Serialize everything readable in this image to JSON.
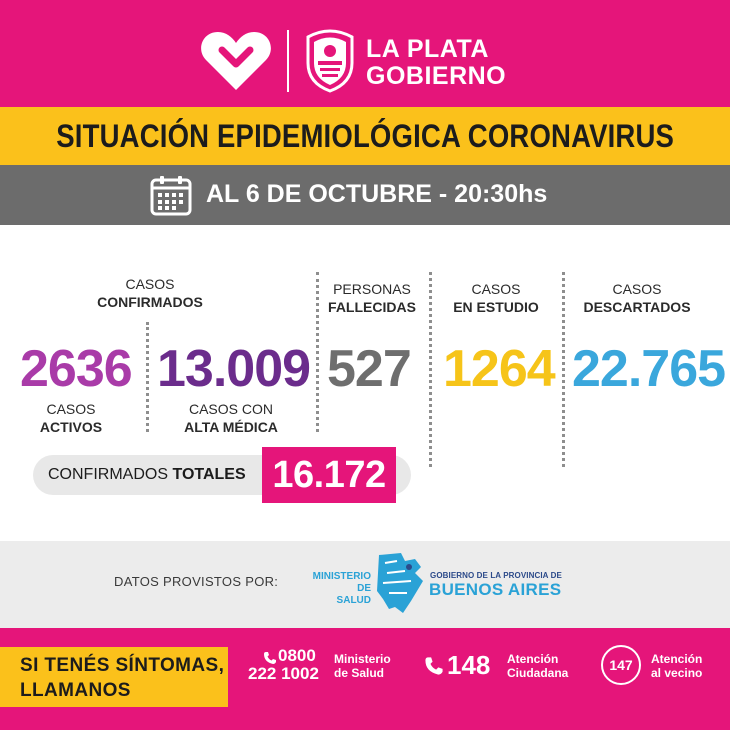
{
  "header": {
    "brand_line1": "LA PLATA",
    "brand_line2": "GOBIERNO"
  },
  "title": "SITUACIÓN EPIDEMIOLÓGICA CORONAVIRUS",
  "date": "AL 6 DE OCTUBRE - 20:30hs",
  "confirmed": {
    "label_line1": "CASOS",
    "label_line2": "CONFIRMADOS",
    "active_value": "2636",
    "active_label_line1": "CASOS",
    "active_label_line2": "ACTIVOS",
    "discharged_value": "13.009",
    "discharged_label_line1": "CASOS CON",
    "discharged_label_line2": "ALTA MÉDICA"
  },
  "deceased": {
    "label_line1": "PERSONAS",
    "label_line2": "FALLECIDAS",
    "value": "527"
  },
  "in_study": {
    "label_line1": "CASOS",
    "label_line2": "EN ESTUDIO",
    "value": "1264"
  },
  "discarded": {
    "label_line1": "CASOS",
    "label_line2": "DESCARTADOS",
    "value": "22.765"
  },
  "totals": {
    "label_prefix": "CONFIRMADOS ",
    "label_bold": "TOTALES",
    "value": "16.172"
  },
  "provided": {
    "label": "DATOS PROVISTOS POR:",
    "ministerio_line1": "MINISTERIO DE",
    "ministerio_line2": "SALUD",
    "province_small": "GOBIERNO DE LA PROVINCIA DE",
    "province_big": "BUENOS AIRES"
  },
  "footer": {
    "symptoms_line1": "SI TENÉS SÍNTOMAS,",
    "symptoms_line2": "LLAMANOS",
    "phone1_line1": "0800",
    "phone1_line2": "222 1002",
    "phone1_desc_line1": "Ministerio",
    "phone1_desc_line2": "de Salud",
    "phone2": "148",
    "phone2_desc_line1": "Atención",
    "phone2_desc_line2": "Ciudadana",
    "phone3": "147",
    "phone3_desc_line1": "Atención",
    "phone3_desc_line2": "al vecino"
  },
  "colors": {
    "magenta": "#e5157a",
    "yellow": "#fbc11b",
    "gray_bar": "#6c6c6c",
    "active_purple": "#a93ba8",
    "discharged_purple": "#6b2c8c",
    "deceased_gray": "#6e6e6e",
    "in_study_yellow": "#f6c419",
    "discarded_blue": "#3aa7dc"
  },
  "icons": [
    "heart-logo-icon",
    "city-seal-icon",
    "calendar-icon",
    "buenos-aires-map-icon",
    "phone-icon"
  ]
}
